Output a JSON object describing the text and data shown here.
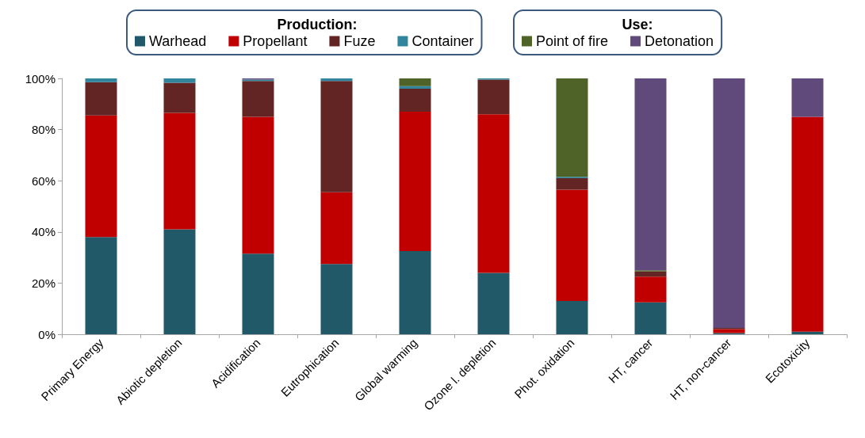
{
  "chart_data": {
    "type": "bar",
    "stacked": true,
    "categories": [
      "Primary Energy",
      "Abiotic depletion",
      "Acidification",
      "Eutrophication",
      "Global warming",
      "Ozone l. depletion",
      "Phot. oxidation",
      "HT, cancer",
      "HT, non-cancer",
      "Ecotoxicity"
    ],
    "series": [
      {
        "name": "Warhead",
        "color": "#215968",
        "values": [
          38,
          41,
          31.5,
          27.5,
          32.5,
          24,
          13,
          12.5,
          0.5,
          1
        ]
      },
      {
        "name": "Propellant",
        "color": "#c00000",
        "values": [
          47.5,
          45.5,
          53.5,
          28,
          54.5,
          62,
          43.5,
          10,
          1.5,
          84
        ]
      },
      {
        "name": "Fuze",
        "color": "#632523",
        "values": [
          13,
          11.8,
          14,
          43.5,
          9,
          13.5,
          4.5,
          2,
          0.5,
          0
        ]
      },
      {
        "name": "Container",
        "color": "#31859c",
        "values": [
          1.5,
          1.7,
          0.5,
          1,
          1,
          0.5,
          0.5,
          0,
          0,
          0
        ]
      },
      {
        "name": "Point of fire",
        "color": "#4f6228",
        "values": [
          0,
          0,
          0,
          0,
          3,
          0,
          38.5,
          0.5,
          0,
          0
        ]
      },
      {
        "name": "Detonation",
        "color": "#604a7b",
        "values": [
          0,
          0,
          0.5,
          0,
          0,
          0,
          0,
          75,
          97.5,
          15
        ]
      }
    ],
    "ylim": [
      0,
      100
    ],
    "yticks": [
      {
        "value": 0,
        "label": "0%"
      },
      {
        "value": 20,
        "label": "20%"
      },
      {
        "value": 40,
        "label": "40%"
      },
      {
        "value": 60,
        "label": "60%"
      },
      {
        "value": 80,
        "label": "80%"
      },
      {
        "value": 100,
        "label": "100%"
      }
    ],
    "grid": false,
    "legend": "top",
    "annotations": [
      "Production:",
      "Use:"
    ]
  }
}
